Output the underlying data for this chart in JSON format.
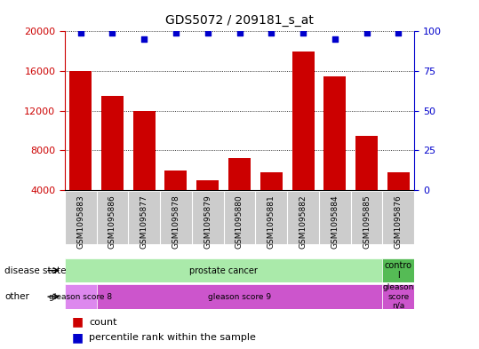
{
  "title": "GDS5072 / 209181_s_at",
  "samples": [
    "GSM1095883",
    "GSM1095886",
    "GSM1095877",
    "GSM1095878",
    "GSM1095879",
    "GSM1095880",
    "GSM1095881",
    "GSM1095882",
    "GSM1095884",
    "GSM1095885",
    "GSM1095876"
  ],
  "counts": [
    16000,
    13500,
    12000,
    6000,
    5000,
    7200,
    5800,
    18000,
    15500,
    9500,
    5800
  ],
  "percentiles": [
    99,
    99,
    95,
    99,
    99,
    99,
    99,
    99,
    95,
    99,
    99
  ],
  "ymin": 4000,
  "ymax": 20000,
  "yticks": [
    4000,
    8000,
    12000,
    16000,
    20000
  ],
  "right_yticks": [
    0,
    25,
    50,
    75,
    100
  ],
  "bar_color": "#cc0000",
  "dot_color": "#0000cc",
  "prostate_color": "#aaeaaa",
  "control_color": "#55bb55",
  "gleason8_color": "#dd88ee",
  "gleason9_color": "#cc55cc",
  "gleasonna_color": "#cc55cc",
  "bg_color": "#ffffff",
  "tick_color_left": "#cc0000",
  "tick_color_right": "#0000cc",
  "xticklabel_bg": "#cccccc"
}
